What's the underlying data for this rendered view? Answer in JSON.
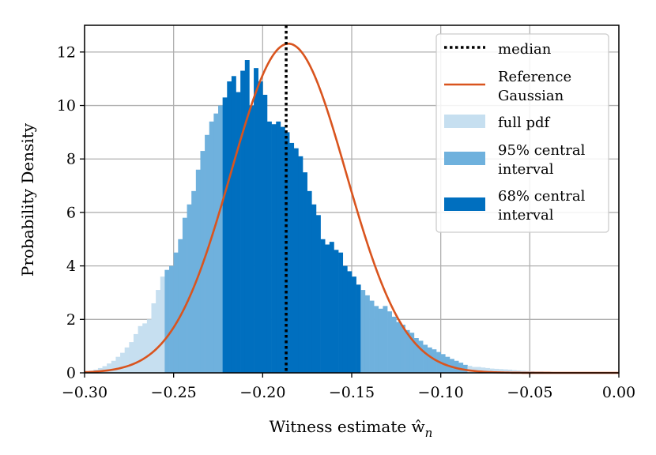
{
  "chart_data": {
    "type": "bar",
    "title": "",
    "xlabel": "Witness estimate ŵ",
    "xlabel_subscript": "n",
    "ylabel": "Probability Density",
    "xlim": [
      -0.3,
      0.0
    ],
    "ylim": [
      0,
      13
    ],
    "xticks": [
      -0.3,
      -0.25,
      -0.2,
      -0.15,
      -0.1,
      -0.05,
      0.0
    ],
    "xtick_labels": [
      "−0.30",
      "−0.25",
      "−0.20",
      "−0.15",
      "−0.10",
      "−0.05",
      "0.00"
    ],
    "yticks": [
      0,
      2,
      4,
      6,
      8,
      10,
      12
    ],
    "ytick_labels": [
      "0",
      "2",
      "4",
      "6",
      "8",
      "10",
      "12"
    ],
    "grid": true,
    "legend_position": "top-right",
    "bin_start": -0.3,
    "bin_width": 0.0025,
    "densities": [
      0.05,
      0.08,
      0.12,
      0.18,
      0.25,
      0.35,
      0.45,
      0.6,
      0.75,
      0.95,
      1.15,
      1.45,
      1.75,
      1.85,
      2.0,
      2.6,
      3.1,
      3.6,
      3.85,
      4.0,
      4.5,
      5.0,
      5.8,
      6.3,
      6.8,
      7.6,
      8.3,
      8.9,
      9.4,
      9.7,
      10.0,
      10.3,
      10.9,
      11.1,
      10.5,
      11.3,
      11.7,
      10.0,
      11.4,
      10.9,
      10.4,
      9.4,
      9.3,
      9.4,
      9.2,
      9.0,
      8.6,
      8.4,
      8.1,
      7.5,
      6.8,
      6.3,
      5.9,
      5.0,
      4.8,
      4.9,
      4.6,
      4.5,
      4.0,
      3.8,
      3.6,
      3.3,
      3.1,
      2.9,
      2.7,
      2.5,
      2.4,
      2.5,
      2.3,
      2.1,
      1.9,
      1.8,
      1.6,
      1.5,
      1.3,
      1.2,
      1.05,
      0.95,
      0.88,
      0.78,
      0.7,
      0.6,
      0.52,
      0.45,
      0.38,
      0.3,
      0.26,
      0.22,
      0.22,
      0.2,
      0.18,
      0.16,
      0.15,
      0.14,
      0.13,
      0.12,
      0.1,
      0.09,
      0.08,
      0.07,
      0.06,
      0.05,
      0.05,
      0.04,
      0.04,
      0.03,
      0.03,
      0.02,
      0.02,
      0.02,
      0.01,
      0.01,
      0.01,
      0.01,
      0.01,
      0.01,
      0.0,
      0.0,
      0.0,
      0.0
    ],
    "intervals": {
      "ci95": [
        -0.2558,
        -0.0855
      ],
      "ci68": [
        -0.2225,
        -0.1443
      ]
    },
    "median": -0.1868,
    "reference_gaussian": {
      "mean": -0.1855,
      "sigma": 0.0324
    },
    "colors": {
      "full_pdf": "#c6dff0",
      "ci95": "#6fb1dd",
      "ci68": "#006fbf",
      "gaussian": "#d9541e",
      "median": "#000000",
      "grid": "#b0b0b0"
    },
    "legend": [
      {
        "key": "median",
        "lines": [
          "median"
        ]
      },
      {
        "key": "gaussian",
        "lines": [
          "Reference",
          "Gaussian"
        ]
      },
      {
        "key": "full_pdf",
        "lines": [
          "full pdf"
        ]
      },
      {
        "key": "ci95",
        "lines": [
          "95% central",
          "interval"
        ]
      },
      {
        "key": "ci68",
        "lines": [
          "68% central",
          "interval"
        ]
      }
    ]
  }
}
